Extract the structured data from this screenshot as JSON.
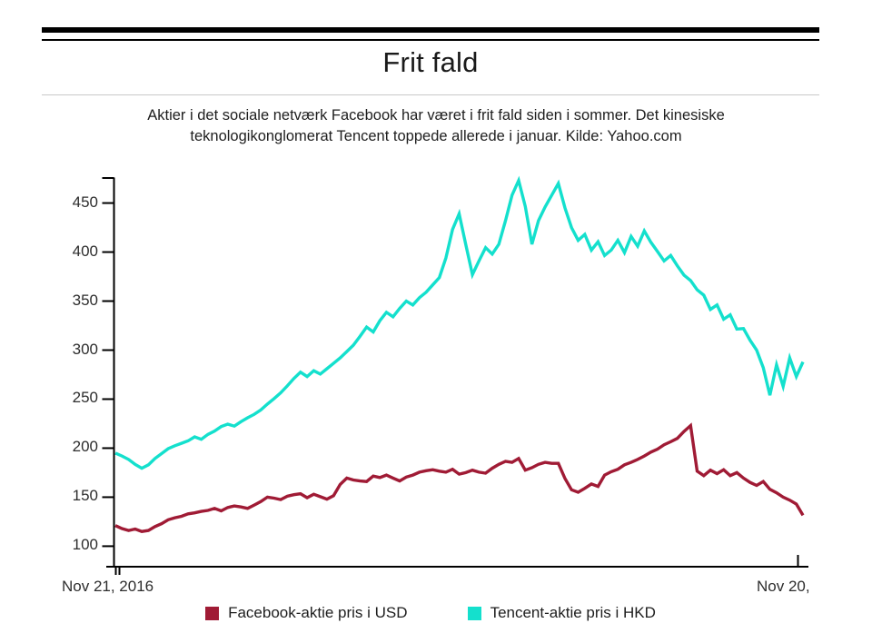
{
  "page": {
    "title": "Frit fald",
    "subtitle_line1": "Aktier i det sociale netværk Facebook har været i frit fald siden i sommer. Det kinesiske",
    "subtitle_line2": "teknologikonglomerat Tencent toppede allerede i januar. Kilde: Yahoo.com"
  },
  "colors": {
    "facebook_line": "#a01b35",
    "tencent_line": "#14e0cd",
    "axis": "#000000"
  },
  "chart_data": {
    "type": "line",
    "title": "Frit fald",
    "source": "Kilde: Yahoo.com",
    "xlabel": "",
    "ylabel": "",
    "x_axis_labels": {
      "left": "Nov 21, 2016",
      "right": "Nov 20,"
    },
    "y_ticks": [
      100,
      150,
      200,
      250,
      300,
      350,
      400,
      450
    ],
    "ylim": [
      80,
      476
    ],
    "grid": false,
    "legend_position": "bottom",
    "x_unit": "weeks since Nov 21, 2016",
    "series": [
      {
        "name": "Facebook-aktie pris i USD",
        "color": "#a01b35",
        "unit": "USD",
        "values": [
          121,
          118,
          116,
          117.5,
          115,
          116,
          120,
          123,
          127,
          129,
          130.5,
          133,
          134,
          135.5,
          136.5,
          138.5,
          136,
          139.5,
          141,
          140,
          138.5,
          142,
          145.5,
          150,
          149,
          147.5,
          151,
          152.5,
          153.5,
          149.5,
          153,
          150.5,
          148,
          151.5,
          163,
          169.5,
          167.5,
          166.5,
          166,
          171.5,
          170,
          172.5,
          169.5,
          166.5,
          170.5,
          172.5,
          175.5,
          177,
          178,
          176.5,
          175.5,
          178.5,
          173.5,
          175,
          177.5,
          175.5,
          174.5,
          179.5,
          183.5,
          186.5,
          185.5,
          189.5,
          177.5,
          180,
          183.5,
          185.5,
          184.5,
          184.5,
          169,
          157.5,
          155,
          159,
          163.5,
          161,
          172.5,
          176,
          178.5,
          183,
          185.5,
          188.5,
          192,
          196,
          199,
          203.5,
          206.5,
          210,
          217,
          223,
          176.5,
          172,
          177.5,
          174,
          178,
          172,
          175,
          169.5,
          165,
          162,
          166,
          158,
          154.5,
          150,
          147,
          143,
          131.5
        ]
      },
      {
        "name": "Tencent-aktie pris i HKD",
        "color": "#14e0cd",
        "unit": "HKD",
        "values": [
          195,
          192,
          188.5,
          183.5,
          179.5,
          183,
          189.5,
          194.5,
          199.5,
          202.5,
          205,
          207.5,
          211.5,
          209,
          214,
          217.5,
          222,
          224.5,
          222.5,
          227,
          231,
          234.5,
          239,
          245,
          250.5,
          256.5,
          263.5,
          271,
          277.5,
          273,
          279,
          275.5,
          281,
          286.5,
          292,
          298.5,
          305,
          314,
          323.5,
          318.5,
          330,
          338.5,
          334,
          342.5,
          350,
          346,
          353.5,
          359,
          366.5,
          374,
          394,
          423,
          439,
          407.5,
          377,
          391,
          404.5,
          398,
          408,
          432,
          458,
          473,
          446.5,
          408,
          432,
          446,
          458,
          470,
          445,
          425,
          412,
          418,
          402,
          410.5,
          396.5,
          402,
          412,
          399.5,
          416,
          406,
          421.5,
          410,
          400.5,
          391,
          396.5,
          386,
          376.5,
          371,
          361.5,
          356,
          341.5,
          346,
          331.5,
          336,
          321.5,
          322,
          310,
          300,
          282,
          254,
          285,
          263,
          292,
          273,
          288
        ]
      }
    ]
  }
}
